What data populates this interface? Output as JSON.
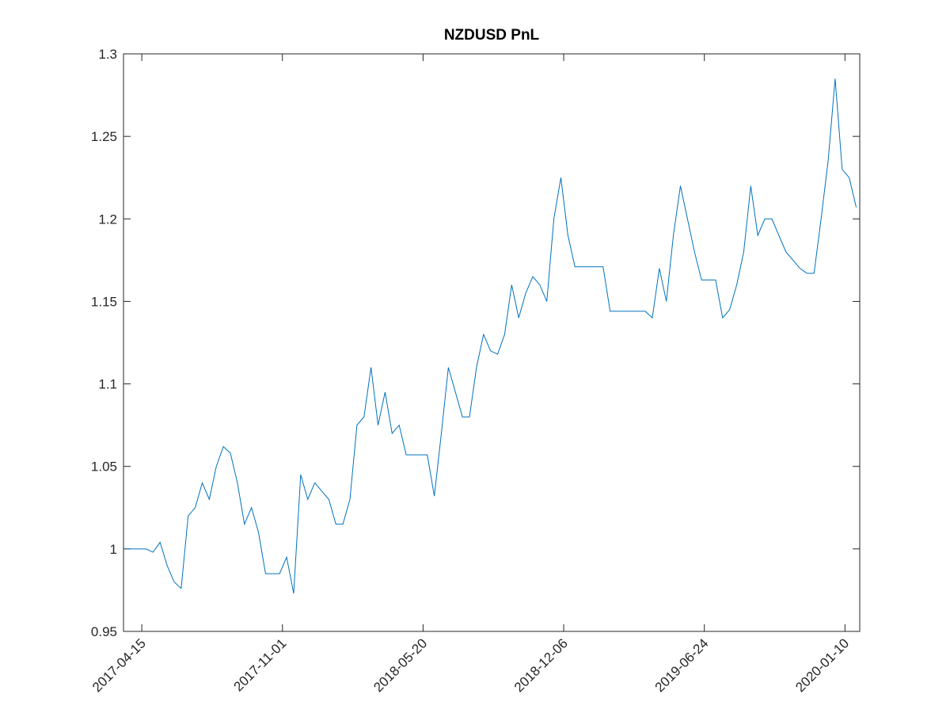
{
  "chart_data": {
    "type": "line",
    "title": "NZDUSD PnL",
    "x": [
      "2017-03-22",
      "2017-04-01",
      "2017-04-11",
      "2017-04-21",
      "2017-05-01",
      "2017-05-11",
      "2017-05-21",
      "2017-05-31",
      "2017-06-10",
      "2017-06-20",
      "2017-06-30",
      "2017-07-10",
      "2017-07-20",
      "2017-07-30",
      "2017-08-09",
      "2017-08-19",
      "2017-08-29",
      "2017-09-08",
      "2017-09-18",
      "2017-09-28",
      "2017-10-08",
      "2017-10-18",
      "2017-10-28",
      "2017-11-07",
      "2017-11-17",
      "2017-11-27",
      "2017-12-07",
      "2017-12-17",
      "2017-12-27",
      "2018-01-06",
      "2018-01-16",
      "2018-01-26",
      "2018-02-05",
      "2018-02-15",
      "2018-02-25",
      "2018-03-07",
      "2018-03-17",
      "2018-03-27",
      "2018-04-06",
      "2018-04-16",
      "2018-04-26",
      "2018-05-06",
      "2018-05-16",
      "2018-05-26",
      "2018-06-05",
      "2018-06-15",
      "2018-06-25",
      "2018-07-05",
      "2018-07-15",
      "2018-07-25",
      "2018-08-04",
      "2018-08-14",
      "2018-08-24",
      "2018-09-03",
      "2018-09-13",
      "2018-09-23",
      "2018-10-03",
      "2018-10-13",
      "2018-10-23",
      "2018-11-02",
      "2018-11-12",
      "2018-11-22",
      "2018-12-02",
      "2018-12-12",
      "2018-12-22",
      "2019-01-01",
      "2019-01-11",
      "2019-01-21",
      "2019-01-31",
      "2019-02-10",
      "2019-02-20",
      "2019-03-02",
      "2019-03-12",
      "2019-03-22",
      "2019-04-01",
      "2019-04-11",
      "2019-04-21",
      "2019-05-01",
      "2019-05-11",
      "2019-05-21",
      "2019-05-31",
      "2019-06-10",
      "2019-06-20",
      "2019-06-30",
      "2019-07-10",
      "2019-07-20",
      "2019-07-30",
      "2019-08-09",
      "2019-08-19",
      "2019-08-29",
      "2019-09-08",
      "2019-09-18",
      "2019-09-28",
      "2019-10-08",
      "2019-10-18",
      "2019-10-28",
      "2019-11-07",
      "2019-11-17",
      "2019-11-27",
      "2019-12-07",
      "2019-12-17",
      "2019-12-27",
      "2020-01-06",
      "2020-01-16",
      "2020-01-26"
    ],
    "series": [
      {
        "name": "NZDUSD",
        "color": "#0072BD",
        "values": [
          1.0,
          1.0,
          1.0,
          1.0,
          0.998,
          1.004,
          0.99,
          0.98,
          0.976,
          1.02,
          1.025,
          1.04,
          1.03,
          1.05,
          1.062,
          1.058,
          1.04,
          1.015,
          1.025,
          1.01,
          0.985,
          0.985,
          0.985,
          0.995,
          0.973,
          1.045,
          1.03,
          1.04,
          1.035,
          1.03,
          1.015,
          1.015,
          1.03,
          1.075,
          1.08,
          1.11,
          1.075,
          1.095,
          1.07,
          1.075,
          1.057,
          1.057,
          1.057,
          1.057,
          1.032,
          1.07,
          1.11,
          1.095,
          1.08,
          1.08,
          1.11,
          1.13,
          1.12,
          1.118,
          1.13,
          1.16,
          1.14,
          1.155,
          1.165,
          1.16,
          1.15,
          1.2,
          1.225,
          1.19,
          1.171,
          1.171,
          1.171,
          1.171,
          1.171,
          1.144,
          1.144,
          1.144,
          1.144,
          1.144,
          1.144,
          1.14,
          1.17,
          1.15,
          1.19,
          1.22,
          1.2,
          1.18,
          1.163,
          1.163,
          1.163,
          1.14,
          1.145,
          1.16,
          1.18,
          1.22,
          1.19,
          1.2,
          1.2,
          1.19,
          1.18,
          1.175,
          1.17,
          1.167,
          1.167,
          1.2,
          1.235,
          1.285,
          1.23,
          1.225,
          1.207
        ]
      }
    ],
    "xlim": [
      "2017-03-20",
      "2020-01-31"
    ],
    "xticks": [
      "2017-04-15",
      "2017-11-01",
      "2018-05-20",
      "2018-12-06",
      "2019-06-24",
      "2020-01-10"
    ],
    "ylim": [
      0.95,
      1.3
    ],
    "yticks": [
      0.95,
      1,
      1.05,
      1.1,
      1.15,
      1.2,
      1.25,
      1.3
    ],
    "grid": false
  }
}
